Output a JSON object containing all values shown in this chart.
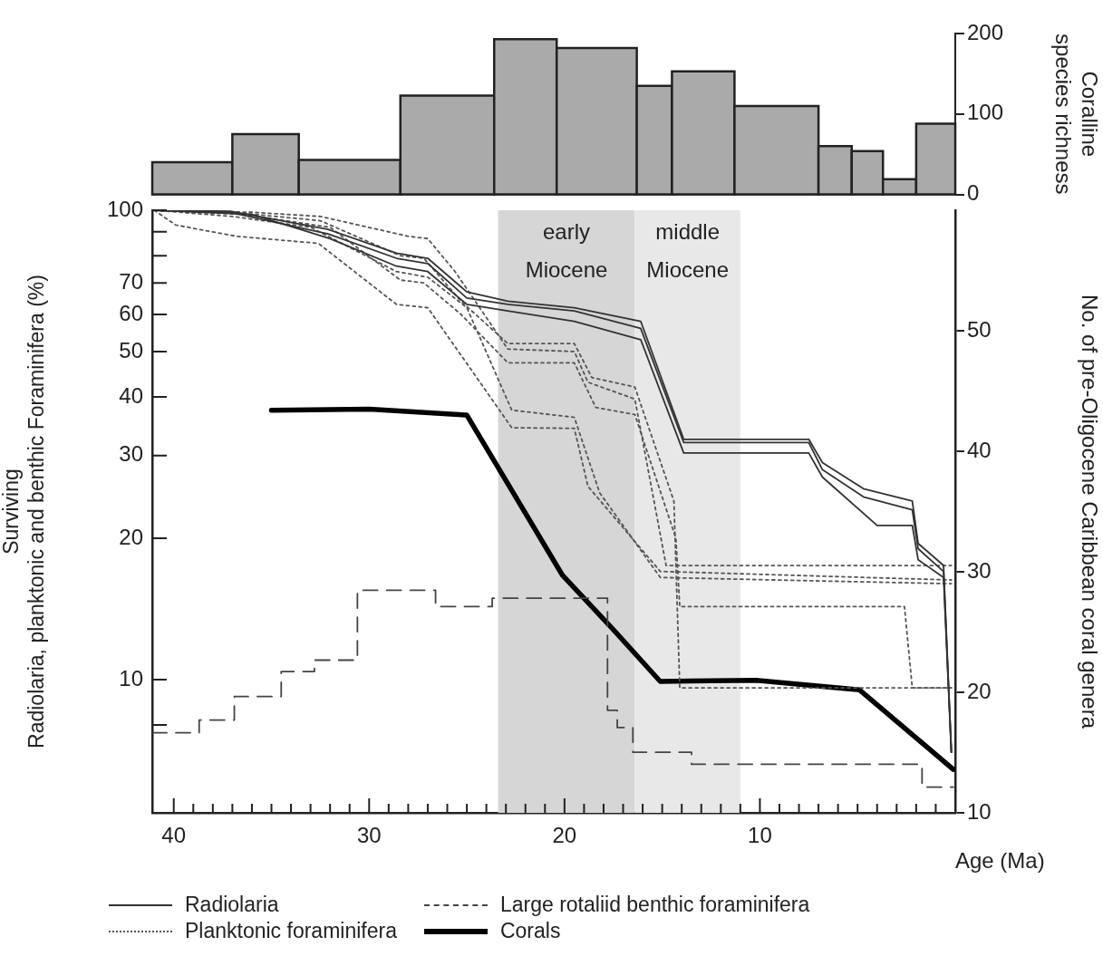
{
  "chart_data": [
    {
      "type": "histogram",
      "ylabel": "Coralline species richness",
      "bins": [
        41.1,
        37.0,
        33.6,
        28.4,
        23.6,
        20.4,
        16.3,
        14.5,
        11.3,
        7.0,
        5.3,
        3.7,
        2.0,
        0
      ],
      "values": [
        40,
        75,
        43,
        123,
        193,
        182,
        135,
        153,
        110,
        60,
        54,
        19,
        88
      ],
      "color": "#aaaaaa",
      "xlim": [
        41.1,
        0
      ],
      "xticks": [
        40,
        30,
        20,
        10
      ],
      "ylim": [
        0,
        200
      ],
      "yticks": [
        0,
        100,
        200
      ],
      "tick_labels": "y"
    },
    {
      "type": "line",
      "xlabel": "Age (Ma)",
      "ylabel": "Surviving Radiolaria, planktonic and benthic Foraminifera (%)",
      "y2label": "No. of pre-Oligocene Caribbean coral genera",
      "xlim": [
        41.1,
        0
      ],
      "xticks": [
        40,
        {
          "value": 39,
          "label": null
        },
        {
          "value": 38,
          "label": null
        },
        {
          "value": 37,
          "label": null
        },
        {
          "value": 36,
          "label": null
        },
        {
          "value": 35,
          "label": null
        },
        {
          "value": 34,
          "label": null
        },
        {
          "value": 33,
          "label": null
        },
        {
          "value": 32,
          "label": null
        },
        {
          "value": 31,
          "label": null
        },
        30,
        {
          "value": 29,
          "label": null
        },
        {
          "value": 28,
          "label": null
        },
        {
          "value": 27,
          "label": null
        },
        {
          "value": 26,
          "label": null
        },
        {
          "value": 25,
          "label": null
        },
        {
          "value": 24,
          "label": null
        },
        {
          "value": 23,
          "label": null
        },
        {
          "value": 22,
          "label": null
        },
        {
          "value": 21,
          "label": null
        },
        20,
        {
          "value": 19,
          "label": null
        },
        {
          "value": 18,
          "label": null
        },
        {
          "value": 17,
          "label": null
        },
        {
          "value": 16,
          "label": null
        },
        {
          "value": 15,
          "label": null
        },
        {
          "value": 14,
          "label": null
        },
        {
          "value": 13,
          "label": null
        },
        {
          "value": 12,
          "label": null
        },
        {
          "value": 11,
          "label": null
        },
        10,
        {
          "value": 9,
          "label": null
        },
        {
          "value": 8,
          "label": null
        },
        {
          "value": 7,
          "label": null
        },
        {
          "value": 6,
          "label": null
        },
        {
          "value": 5,
          "label": null
        },
        {
          "value": 4,
          "label": null
        },
        {
          "value": 3,
          "label": null
        },
        {
          "value": 2,
          "label": null
        },
        {
          "value": 1,
          "label": null
        }
      ],
      "ylim": [
        5.2,
        100
      ],
      "yticks": [
        {
          "value": 8,
          "label": null
        },
        10,
        20,
        30,
        40,
        50,
        60,
        70,
        {
          "value": 80,
          "label": null
        },
        {
          "value": 90,
          "label": null
        },
        100
      ],
      "y2lim": [
        10,
        60
      ],
      "y2ticks": [
        10,
        20,
        30,
        40,
        50
      ],
      "log": "y",
      "legend": "bottom",
      "bands": [
        {
          "axis": "x",
          "from": 23.4,
          "to": 16.4,
          "label": "early Miocene",
          "color": "#d6d6d6"
        },
        {
          "axis": "x",
          "from": 16.4,
          "to": 11.0,
          "label": "middle Miocene",
          "color": "#e8e8e8"
        }
      ],
      "series": [
        {
          "name": "Radiolaria",
          "color": "#333333",
          "line_style": "solid",
          "x": [
            41,
            37.1,
            32.1,
            28.6,
            27,
            25,
            22.9,
            19.5,
            16.1,
            13.9,
            7.5,
            6.8,
            4.7,
            2.2,
            1.9,
            0.6,
            0.2
          ],
          "values": [
            100,
            99,
            89,
            79,
            77,
            65,
            63,
            61,
            56,
            32,
            32,
            28,
            24.5,
            23,
            19,
            17,
            7
          ]
        },
        {
          "color": "#333333",
          "line_style": "solid",
          "x": [
            41,
            36,
            32,
            28.6,
            27,
            25,
            22.9,
            19.5,
            16.1,
            13.9,
            7.5,
            6.8,
            4.0,
            2.2,
            1.9,
            0.6,
            0.2
          ],
          "values": [
            100,
            98,
            87,
            76,
            74,
            63,
            61,
            58,
            53,
            30.4,
            30.4,
            27,
            21.3,
            21.3,
            18,
            16.5,
            7
          ]
        },
        {
          "color": "#333333",
          "line_style": "solid",
          "x": [
            41,
            37.1,
            32.1,
            28.6,
            27,
            25,
            22.9,
            19.5,
            16.1,
            13.9,
            7.5,
            6.8,
            4.7,
            2.2,
            1.9,
            0.6,
            0.2
          ],
          "values": [
            100,
            99.5,
            91,
            81,
            79,
            67,
            64,
            62,
            58,
            32.5,
            32.5,
            29,
            25.5,
            24,
            19.5,
            17.5,
            7
          ]
        },
        {
          "name": "Planktonic foraminifera",
          "color": "#555555",
          "line_style": "dotted",
          "x": [
            41.0,
            39.9,
            36.8,
            32.6,
            28.6,
            27.0,
            22.7,
            19.5,
            18.8,
            15.1,
            0.2
          ],
          "values": [
            100,
            93,
            88,
            85,
            63,
            62,
            34.4,
            34.3,
            25.8,
            17,
            16.3
          ]
        },
        {
          "color": "#555555",
          "line_style": "dotted",
          "x": [
            41.0,
            37,
            33,
            28.6,
            27.0,
            25,
            22.7,
            19.5,
            18.2,
            15.1,
            0.2
          ],
          "values": [
            100,
            97,
            92,
            74,
            72,
            62,
            37.5,
            36.2,
            25,
            16.5,
            16
          ]
        },
        {
          "color": "#555555",
          "line_style": "dotted",
          "x": [
            41.0,
            36,
            32.5,
            28.0,
            27.0,
            25.6,
            22.9,
            19.5,
            18.8,
            16.4,
            14.8,
            0.2
          ],
          "values": [
            100,
            99,
            97,
            88,
            87,
            74,
            50.6,
            50,
            43,
            39.6,
            17.5,
            17.5
          ]
        },
        {
          "color": "#555555",
          "line_style": "dotted",
          "x": [
            41.0,
            36.5,
            32,
            28.4,
            27.2,
            25.3,
            22.9,
            19.5,
            18.4,
            16.4,
            14.3,
            14.1,
            2.6,
            2.2,
            0.2
          ],
          "values": [
            100,
            98,
            92,
            71,
            70,
            60,
            47.3,
            47.3,
            38,
            36.7,
            20,
            14.3,
            14.3,
            9.6,
            9.6
          ]
        },
        {
          "color": "#555555",
          "line_style": "dotted",
          "x": [
            41.0,
            37,
            32.5,
            28.4,
            27.2,
            25.3,
            22.9,
            19.5,
            18.6,
            16.4,
            14.4,
            14.1,
            0.2
          ],
          "values": [
            100,
            99,
            95,
            80,
            79,
            64,
            52,
            52,
            44,
            42,
            24,
            9.6,
            9.6
          ]
        },
        {
          "name": "Large rotaliid benthic foraminifera",
          "type": "step",
          "color": "#444444",
          "line_style": "dashed",
          "x": [
            41.1,
            38.7,
            36.9,
            34.5,
            32.8,
            30.6,
            26.6,
            23.7,
            17.8,
            17.3,
            16.5,
            13.5,
            1.7,
            0.1
          ],
          "values": [
            7.7,
            8.2,
            9.2,
            10.4,
            11.0,
            15.5,
            14.3,
            14.9,
            8.6,
            7.9,
            7.0,
            6.6,
            5.9,
            5.9
          ]
        },
        {
          "name": "Corals",
          "axis": "y2",
          "color": "#000000",
          "line_style": "solid",
          "x": [
            35,
            30,
            25,
            22.2,
            20.1,
            17.5,
            15.1,
            10.2,
            4.9,
            0.1
          ],
          "values": [
            43.4,
            43.5,
            43,
            35.4,
            29.7,
            25.2,
            20.9,
            21,
            20.2,
            13.6
          ]
        }
      ]
    }
  ]
}
